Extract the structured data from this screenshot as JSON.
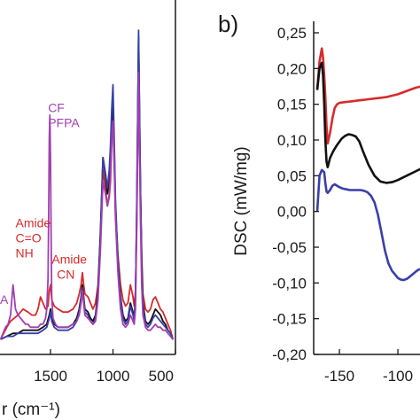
{
  "chart_data": [
    {
      "panel": "",
      "type": "line",
      "xlabel": "r (cm⁻¹)",
      "ylabel": "",
      "xlim": [
        1900,
        500
      ],
      "xticks": [
        1500,
        1000,
        500
      ],
      "grid": false,
      "annotations": [
        {
          "text": "CF",
          "x": 1520,
          "y": 0.75,
          "color": "#a23fb2"
        },
        {
          "text": "PFPA",
          "x": 1520,
          "y": 0.7,
          "color": "#a23fb2"
        },
        {
          "text": "Amide",
          "x": 1780,
          "y": 0.37,
          "color": "#d62c2c"
        },
        {
          "text": "C=O",
          "x": 1780,
          "y": 0.32,
          "color": "#d62c2c"
        },
        {
          "text": "NH",
          "x": 1780,
          "y": 0.27,
          "color": "#d62c2c"
        },
        {
          "text": "Amide",
          "x": 1490,
          "y": 0.25,
          "color": "#d62c2c"
        },
        {
          "text": "CN",
          "x": 1450,
          "y": 0.2,
          "color": "#d62c2c"
        }
      ],
      "series": [
        {
          "color": "#d62c2c",
          "x": [
            1900,
            1850,
            1820,
            1790,
            1760,
            1720,
            1680,
            1650,
            1620,
            1600,
            1580,
            1560,
            1540,
            1520,
            1510,
            1500,
            1490,
            1470,
            1440,
            1400,
            1360,
            1320,
            1290,
            1270,
            1255,
            1245,
            1235,
            1225,
            1200,
            1180,
            1160,
            1140,
            1120,
            1100,
            1080,
            1060,
            1045,
            1030,
            1020,
            1010,
            1000,
            990,
            980,
            960,
            940,
            920,
            900,
            880,
            860,
            840,
            830,
            820,
            810,
            800,
            795,
            790,
            780,
            770,
            760,
            740,
            720,
            700,
            680,
            660,
            640,
            620,
            600,
            580,
            560,
            540,
            520
          ],
          "y": [
            0.0,
            0.04,
            0.06,
            0.07,
            0.08,
            0.1,
            0.09,
            0.08,
            0.08,
            0.1,
            0.14,
            0.12,
            0.1,
            0.11,
            0.16,
            0.18,
            0.13,
            0.11,
            0.1,
            0.09,
            0.09,
            0.1,
            0.12,
            0.15,
            0.18,
            0.22,
            0.18,
            0.15,
            0.14,
            0.12,
            0.1,
            0.12,
            0.18,
            0.34,
            0.56,
            0.5,
            0.44,
            0.47,
            0.52,
            0.66,
            0.72,
            0.58,
            0.42,
            0.28,
            0.18,
            0.13,
            0.11,
            0.12,
            0.18,
            0.14,
            0.11,
            0.16,
            0.38,
            0.72,
            0.92,
            0.75,
            0.48,
            0.28,
            0.15,
            0.1,
            0.09,
            0.1,
            0.13,
            0.14,
            0.12,
            0.1,
            0.09,
            0.07,
            0.05,
            0.03,
            0.0
          ]
        },
        {
          "color": "#111111",
          "x": [
            1900,
            1850,
            1800,
            1760,
            1720,
            1680,
            1640,
            1600,
            1560,
            1530,
            1510,
            1500,
            1490,
            1470,
            1440,
            1400,
            1360,
            1320,
            1290,
            1270,
            1255,
            1245,
            1235,
            1225,
            1200,
            1180,
            1160,
            1140,
            1120,
            1100,
            1080,
            1060,
            1045,
            1030,
            1020,
            1010,
            1000,
            990,
            980,
            960,
            940,
            920,
            900,
            880,
            860,
            840,
            830,
            820,
            810,
            800,
            795,
            790,
            780,
            770,
            760,
            740,
            720,
            700,
            680,
            660,
            640,
            620,
            600,
            580,
            560,
            540,
            520
          ],
          "y": [
            0.0,
            0.01,
            0.02,
            0.02,
            0.03,
            0.03,
            0.03,
            0.03,
            0.04,
            0.05,
            0.08,
            0.1,
            0.07,
            0.05,
            0.04,
            0.04,
            0.04,
            0.05,
            0.07,
            0.1,
            0.14,
            0.18,
            0.14,
            0.1,
            0.09,
            0.07,
            0.06,
            0.08,
            0.16,
            0.36,
            0.6,
            0.54,
            0.48,
            0.52,
            0.58,
            0.7,
            0.78,
            0.62,
            0.44,
            0.26,
            0.14,
            0.08,
            0.06,
            0.07,
            0.12,
            0.09,
            0.07,
            0.14,
            0.42,
            0.8,
            1.0,
            0.82,
            0.5,
            0.26,
            0.12,
            0.06,
            0.05,
            0.06,
            0.08,
            0.1,
            0.09,
            0.08,
            0.06,
            0.05,
            0.03,
            0.02,
            0.0
          ]
        },
        {
          "color": "#3a3fa8",
          "x": [
            1900,
            1850,
            1800,
            1760,
            1720,
            1680,
            1640,
            1600,
            1560,
            1530,
            1510,
            1500,
            1490,
            1470,
            1440,
            1400,
            1360,
            1320,
            1290,
            1270,
            1255,
            1245,
            1235,
            1225,
            1200,
            1180,
            1160,
            1140,
            1120,
            1100,
            1080,
            1060,
            1045,
            1030,
            1020,
            1010,
            1000,
            990,
            980,
            960,
            940,
            920,
            900,
            880,
            860,
            840,
            830,
            820,
            810,
            800,
            795,
            790,
            780,
            770,
            760,
            740,
            720,
            700,
            680,
            660,
            640,
            620,
            600,
            580,
            560,
            540,
            520
          ],
          "y": [
            0.0,
            0.01,
            0.01,
            0.02,
            0.02,
            0.02,
            0.02,
            0.02,
            0.03,
            0.04,
            0.07,
            0.09,
            0.06,
            0.04,
            0.03,
            0.03,
            0.03,
            0.04,
            0.06,
            0.09,
            0.13,
            0.17,
            0.13,
            0.09,
            0.08,
            0.06,
            0.05,
            0.07,
            0.15,
            0.34,
            0.6,
            0.55,
            0.5,
            0.56,
            0.64,
            0.76,
            0.84,
            0.66,
            0.46,
            0.26,
            0.13,
            0.07,
            0.05,
            0.06,
            0.11,
            0.08,
            0.06,
            0.13,
            0.44,
            0.82,
            1.02,
            0.84,
            0.5,
            0.24,
            0.1,
            0.05,
            0.04,
            0.05,
            0.07,
            0.08,
            0.07,
            0.06,
            0.05,
            0.04,
            0.03,
            0.02,
            0.0
          ]
        },
        {
          "color": "#a23fb2",
          "x": [
            1900,
            1880,
            1860,
            1840,
            1820,
            1800,
            1780,
            1760,
            1740,
            1720,
            1700,
            1680,
            1660,
            1640,
            1620,
            1600,
            1580,
            1560,
            1540,
            1530,
            1520,
            1515,
            1510,
            1505,
            1500,
            1495,
            1490,
            1480,
            1460,
            1440,
            1400,
            1360,
            1320,
            1290,
            1270,
            1255,
            1245,
            1235,
            1225,
            1200,
            1180,
            1160,
            1140,
            1120,
            1100,
            1080,
            1060,
            1045,
            1030,
            1020,
            1010,
            1000,
            990,
            980,
            960,
            940,
            920,
            900,
            880,
            860,
            840,
            830,
            820,
            810,
            800,
            795,
            790,
            780,
            770,
            760,
            740,
            720,
            700,
            680,
            660,
            640,
            620,
            600,
            580,
            560,
            540,
            520
          ],
          "y": [
            0.0,
            0.02,
            0.04,
            0.05,
            0.08,
            0.18,
            0.1,
            0.08,
            0.07,
            0.06,
            0.05,
            0.05,
            0.04,
            0.04,
            0.04,
            0.04,
            0.05,
            0.05,
            0.07,
            0.1,
            0.2,
            0.4,
            0.66,
            0.74,
            0.6,
            0.34,
            0.14,
            0.07,
            0.05,
            0.04,
            0.04,
            0.04,
            0.05,
            0.06,
            0.08,
            0.12,
            0.16,
            0.12,
            0.08,
            0.07,
            0.06,
            0.05,
            0.06,
            0.13,
            0.3,
            0.52,
            0.48,
            0.44,
            0.48,
            0.54,
            0.66,
            0.72,
            0.58,
            0.4,
            0.22,
            0.1,
            0.05,
            0.04,
            0.05,
            0.08,
            0.06,
            0.05,
            0.1,
            0.36,
            0.7,
            0.88,
            0.7,
            0.4,
            0.18,
            0.08,
            0.04,
            0.03,
            0.03,
            0.04,
            0.05,
            0.04,
            0.04,
            0.03,
            0.03,
            0.02,
            0.01,
            0.0
          ]
        }
      ]
    },
    {
      "panel": "b)",
      "type": "line",
      "xlabel": "",
      "ylabel": "DSC (mW/mg)",
      "xlim": [
        -172,
        -80
      ],
      "ylim": [
        -0.2,
        0.25
      ],
      "xticks": [
        -150,
        -100
      ],
      "yticks": [
        "0,25",
        "0,20",
        "0,15",
        "0,10",
        "0,05",
        "0,00",
        "-0,05",
        "-0,10",
        "-0,15",
        "-0,20"
      ],
      "ytick_values": [
        0.25,
        0.2,
        0.15,
        0.1,
        0.05,
        0.0,
        -0.05,
        -0.1,
        -0.15,
        -0.2
      ],
      "grid": false,
      "series": [
        {
          "color": "#d62c2c",
          "x": [
            -169,
            -167,
            -165,
            -164,
            -163,
            -162,
            -161,
            -160,
            -158,
            -156,
            -154,
            -152,
            -150,
            -145,
            -140,
            -135,
            -130,
            -125,
            -120,
            -115,
            -110,
            -105,
            -100,
            -95,
            -90,
            -85,
            -80
          ],
          "y": [
            0.17,
            0.21,
            0.228,
            0.215,
            0.19,
            0.16,
            0.12,
            0.095,
            0.11,
            0.13,
            0.145,
            0.15,
            0.152,
            0.153,
            0.154,
            0.155,
            0.156,
            0.157,
            0.158,
            0.159,
            0.16,
            0.162,
            0.164,
            0.167,
            0.17,
            0.173,
            0.175
          ]
        },
        {
          "color": "#111111",
          "x": [
            -169,
            -167,
            -165,
            -164,
            -163,
            -162,
            -161,
            -160,
            -158,
            -155,
            -152,
            -148,
            -145,
            -142,
            -139,
            -136,
            -133,
            -130,
            -125,
            -120,
            -115,
            -110,
            -105,
            -100,
            -95,
            -90,
            -85,
            -80
          ],
          "y": [
            0.17,
            0.2,
            0.208,
            0.19,
            0.15,
            0.1,
            0.07,
            0.062,
            0.075,
            0.085,
            0.093,
            0.102,
            0.106,
            0.108,
            0.107,
            0.105,
            0.098,
            0.085,
            0.065,
            0.05,
            0.042,
            0.04,
            0.041,
            0.044,
            0.048,
            0.052,
            0.056,
            0.06
          ]
        },
        {
          "color": "#3a3fa8",
          "x": [
            -169,
            -167,
            -165,
            -163,
            -162,
            -161,
            -160,
            -158,
            -156,
            -154,
            -152,
            -150,
            -147,
            -144,
            -141,
            -138,
            -135,
            -132,
            -129,
            -126,
            -123,
            -120,
            -117,
            -114,
            -111,
            -108,
            -105,
            -102,
            -100,
            -98,
            -95,
            -92,
            -89,
            -86,
            -83,
            -80
          ],
          "y": [
            0.0,
            0.05,
            0.058,
            0.055,
            0.04,
            0.028,
            0.026,
            0.03,
            0.036,
            0.038,
            0.036,
            0.034,
            0.032,
            0.031,
            0.03,
            0.03,
            0.03,
            0.03,
            0.029,
            0.027,
            0.022,
            0.013,
            -0.005,
            -0.03,
            -0.055,
            -0.073,
            -0.083,
            -0.089,
            -0.093,
            -0.095,
            -0.096,
            -0.094,
            -0.09,
            -0.086,
            -0.082,
            -0.08
          ]
        }
      ]
    }
  ],
  "panel_a": {
    "xtick_labels": [
      "1500",
      "1000",
      "500"
    ],
    "xlabel_visible": "r (cm⁻¹)",
    "edge_label": "A"
  },
  "panel_b": {
    "label": "b)",
    "ylabel": "DSC (mW/mg)",
    "xtick_labels": [
      "-150",
      "-100"
    ],
    "ytick_labels": [
      "0,25",
      "0,20",
      "0,15",
      "0,10",
      "0,05",
      "0,00",
      "-0,05",
      "-0,10",
      "-0,15",
      "-0,20"
    ]
  }
}
